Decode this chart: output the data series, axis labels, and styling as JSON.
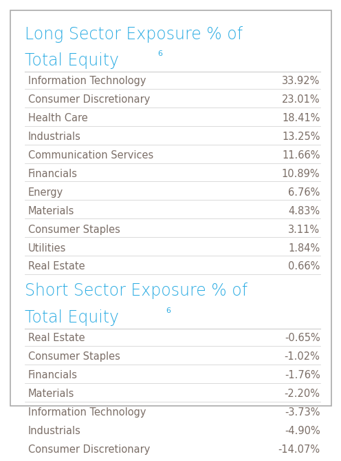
{
  "long_title_line1": "Long Sector Exposure % of",
  "long_title_line2": "Total Equity",
  "long_title_superscript": "6",
  "short_title_line1": "Short Sector Exposure % of",
  "short_title_line2": "Total Equity",
  "short_title_superscript": "6",
  "long_sectors": [
    [
      "Information Technology",
      "33.92%"
    ],
    [
      "Consumer Discretionary",
      "23.01%"
    ],
    [
      "Health Care",
      "18.41%"
    ],
    [
      "Industrials",
      "13.25%"
    ],
    [
      "Communication Services",
      "11.66%"
    ],
    [
      "Financials",
      "10.89%"
    ],
    [
      "Energy",
      "6.76%"
    ],
    [
      "Materials",
      "4.83%"
    ],
    [
      "Consumer Staples",
      "3.11%"
    ],
    [
      "Utilities",
      "1.84%"
    ],
    [
      "Real Estate",
      "0.66%"
    ]
  ],
  "short_sectors": [
    [
      "Real Estate",
      "-0.65%"
    ],
    [
      "Consumer Staples",
      "-1.02%"
    ],
    [
      "Financials",
      "-1.76%"
    ],
    [
      "Materials",
      "-2.20%"
    ],
    [
      "Information Technology",
      "-3.73%"
    ],
    [
      "Industrials",
      "-4.90%"
    ],
    [
      "Consumer Discretionary",
      "-14.07%"
    ]
  ],
  "title_color": "#29abe2",
  "label_color": "#7b6e67",
  "value_color": "#7b6e67",
  "line_color": "#cccccc",
  "bg_color": "#ffffff",
  "border_color": "#aaaaaa",
  "title_fontsize": 17,
  "row_fontsize": 10.5
}
